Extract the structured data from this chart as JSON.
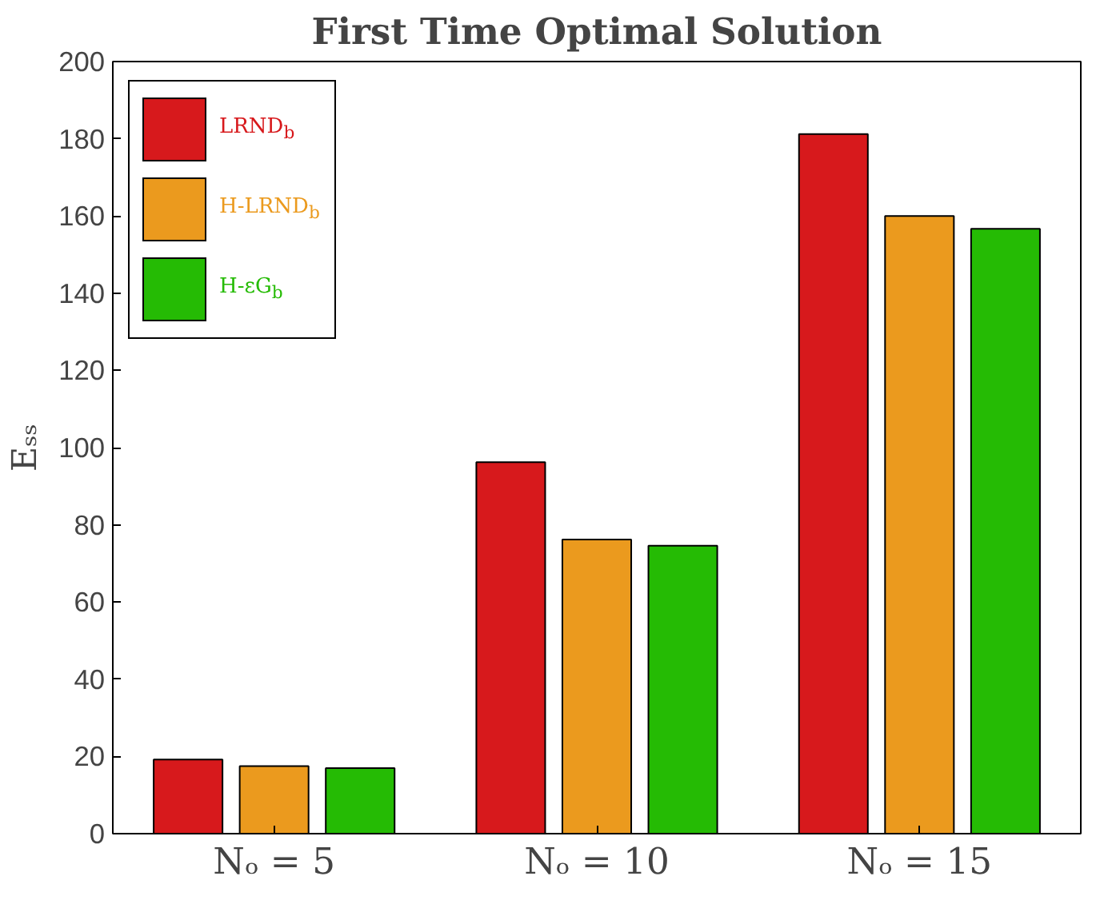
{
  "chart_data": {
    "type": "bar",
    "title": "First Time Optimal Solution",
    "ylabel": "Eₛₛ",
    "categories": [
      "Nₒ = 5",
      "Nₒ = 10",
      "Nₒ = 15"
    ],
    "series": [
      {
        "name": "LRND$_{b}$",
        "color": "#d7191c",
        "values": [
          19.2,
          96.2,
          181.2
        ]
      },
      {
        "name": "H-LRND$_{b}$",
        "color": "#eb9a1e",
        "values": [
          17.5,
          76.2,
          160
        ]
      },
      {
        "name": "H-εG$_{b}$",
        "color": "#25bb04",
        "values": [
          17,
          74.6,
          156.7
        ]
      }
    ],
    "ylim": [
      0,
      200
    ],
    "yticks": [
      0,
      20,
      40,
      60,
      80,
      100,
      120,
      140,
      160,
      180,
      200
    ],
    "grid": false,
    "legend": "top left"
  }
}
